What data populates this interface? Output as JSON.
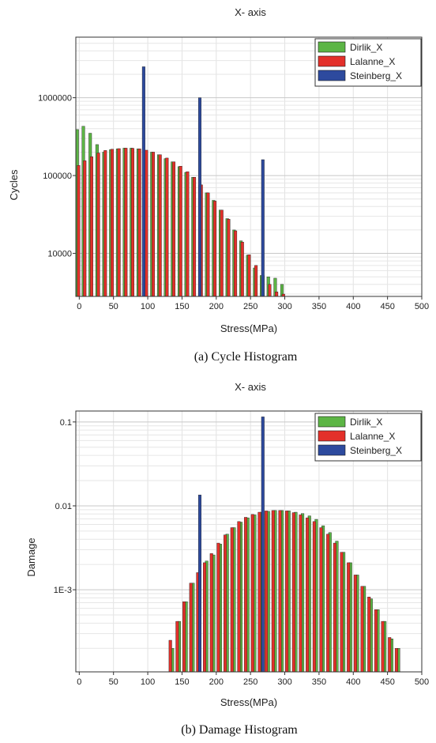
{
  "chart_data": [
    {
      "type": "bar",
      "title": "X- axis",
      "caption": "(a) Cycle Histogram",
      "xlabel": "Stress(MPa)",
      "ylabel": "Cycles",
      "y_scale": "log",
      "xlim": [
        -5,
        500
      ],
      "ylim": [
        2800,
        6000000
      ],
      "x_ticks": [
        0,
        50,
        100,
        150,
        200,
        250,
        300,
        350,
        400,
        450,
        500
      ],
      "x_tick_labels": [
        "0",
        "50",
        "100",
        "150",
        "200",
        "250",
        "300",
        "350",
        "400",
        "450",
        "500"
      ],
      "y_ticks": [
        10000,
        100000,
        1000000
      ],
      "y_tick_labels": [
        "10000",
        "100000",
        "1000000"
      ],
      "grid": true,
      "legend_position": "top-right",
      "series": [
        {
          "name": "Dirlik_X",
          "color": "#5cb545",
          "x": [
            -3,
            6,
            16,
            26,
            36,
            46,
            56,
            66,
            76,
            86,
            96,
            106,
            116,
            126,
            136,
            146,
            156,
            166,
            176,
            186,
            196,
            206,
            216,
            226,
            236,
            246,
            256,
            266,
            276,
            286,
            296
          ],
          "values": [
            390000,
            430000,
            350000,
            250000,
            200000,
            215000,
            220000,
            225000,
            225000,
            220000,
            210000,
            200000,
            185000,
            165000,
            150000,
            130000,
            110000,
            95000,
            75000,
            60000,
            48000,
            36000,
            28000,
            20000,
            14500,
            9500,
            6500,
            5200,
            5000,
            4800,
            4000
          ]
        },
        {
          "name": "Lalanne_X",
          "color": "#e3302a",
          "x": [
            -1,
            8,
            18,
            28,
            38,
            48,
            58,
            68,
            78,
            88,
            98,
            108,
            118,
            128,
            138,
            148,
            158,
            168,
            178,
            188,
            198,
            208,
            218,
            228,
            238,
            248,
            258,
            268,
            278,
            288,
            298
          ],
          "values": [
            135000,
            155000,
            175000,
            195000,
            210000,
            218000,
            222000,
            225000,
            224000,
            220000,
            212000,
            200000,
            185000,
            168000,
            150000,
            132000,
            112000,
            95000,
            76000,
            60000,
            47000,
            36000,
            27500,
            19500,
            14000,
            9600,
            7000,
            5200,
            4000,
            3200,
            3000
          ]
        },
        {
          "name": "Steinberg_X",
          "color": "#2d4a9e",
          "x": [
            94,
            176,
            268
          ],
          "values": [
            2500000,
            1000000,
            160000
          ]
        }
      ]
    },
    {
      "type": "bar",
      "title": "X- axis",
      "caption": "(b) Damage Histogram",
      "xlabel": "Stress(MPa)",
      "ylabel": "Damage",
      "y_scale": "log",
      "xlim": [
        -5,
        500
      ],
      "ylim": [
        0.000105,
        0.135
      ],
      "x_ticks": [
        0,
        50,
        100,
        150,
        200,
        250,
        300,
        350,
        400,
        450,
        500
      ],
      "x_tick_labels": [
        "0",
        "50",
        "100",
        "150",
        "200",
        "250",
        "300",
        "350",
        "400",
        "450",
        "500"
      ],
      "y_ticks": [
        0.001,
        0.01,
        0.1
      ],
      "y_tick_labels": [
        "1E-3",
        "0.01",
        "0.1"
      ],
      "grid": true,
      "legend_position": "top-right",
      "series": [
        {
          "name": "Dirlik_X",
          "color": "#5cb545",
          "x": [
            136,
            146,
            156,
            166,
            176,
            186,
            196,
            206,
            216,
            226,
            236,
            246,
            256,
            266,
            276,
            286,
            296,
            306,
            316,
            326,
            336,
            346,
            356,
            366,
            376,
            386,
            396,
            406,
            416,
            426,
            436,
            446,
            456,
            466
          ],
          "values": [
            0.0002,
            0.00042,
            0.00072,
            0.0012,
            0.0017,
            0.0022,
            0.0026,
            0.0035,
            0.0046,
            0.0055,
            0.0064,
            0.0072,
            0.0078,
            0.0084,
            0.0086,
            0.0088,
            0.0088,
            0.0087,
            0.0084,
            0.0081,
            0.0076,
            0.0069,
            0.0058,
            0.0048,
            0.0038,
            0.0028,
            0.0021,
            0.0015,
            0.0011,
            0.00078,
            0.00058,
            0.00042,
            0.00026,
            0.0002
          ]
        },
        {
          "name": "Lalanne_X",
          "color": "#e3302a",
          "x": [
            133,
            143,
            153,
            163,
            173,
            183,
            193,
            203,
            213,
            223,
            233,
            243,
            253,
            263,
            273,
            283,
            293,
            303,
            313,
            323,
            333,
            343,
            353,
            363,
            373,
            383,
            393,
            403,
            413,
            423,
            433,
            443,
            453,
            463
          ],
          "values": [
            0.00025,
            0.00042,
            0.00072,
            0.0012,
            0.0016,
            0.0021,
            0.0027,
            0.0036,
            0.0045,
            0.0055,
            0.0065,
            0.0073,
            0.0079,
            0.0084,
            0.0087,
            0.0088,
            0.0088,
            0.0087,
            0.0083,
            0.0078,
            0.0072,
            0.0065,
            0.0055,
            0.0046,
            0.0036,
            0.0028,
            0.0021,
            0.0015,
            0.0011,
            0.00082,
            0.00058,
            0.00042,
            0.00027,
            0.0002
          ]
        },
        {
          "name": "Steinberg_X",
          "color": "#2d4a9e",
          "x": [
            176,
            268
          ],
          "values": [
            0.0135,
            0.115
          ]
        }
      ]
    }
  ]
}
